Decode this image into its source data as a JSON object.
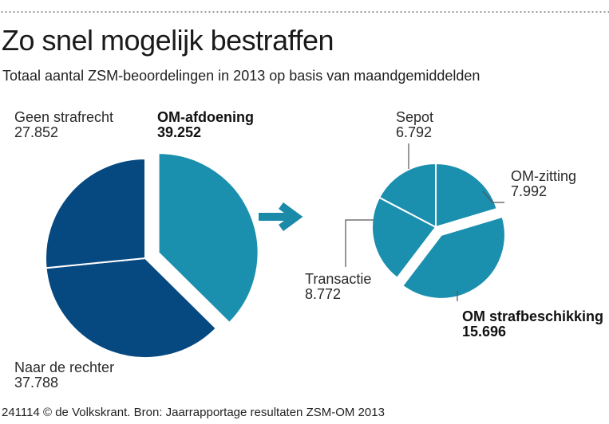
{
  "header": {
    "title": "Zo snel mogelijk bestraffen",
    "subtitle": "Totaal aantal ZSM-beoordelingen in 2013 op basis van maandgemiddelden"
  },
  "footer": {
    "credit": "241114 © de Volkskrant. Bron: Jaarrapportage resultaten ZSM-OM 2013"
  },
  "colors": {
    "dark_blue": "#064880",
    "teal": "#1b8fae",
    "arrow": "#1a8aa8",
    "leader_line": "#555555"
  },
  "chart_data": [
    {
      "type": "pie",
      "slices": [
        {
          "label": "OM-afdoening",
          "value": 39252,
          "value_label": "39.252",
          "color": "#1b8fae",
          "exploded": true,
          "bold": true
        },
        {
          "label": "Naar de rechter",
          "value": 37788,
          "value_label": "37.788",
          "color": "#064880",
          "exploded": false,
          "bold": false
        },
        {
          "label": "Geen strafrecht",
          "value": 27852,
          "value_label": "27.852",
          "color": "#064880",
          "exploded": false,
          "bold": false
        }
      ]
    },
    {
      "type": "pie",
      "slices": [
        {
          "label": "OM-zitting",
          "value": 7992,
          "value_label": "7.992",
          "color": "#1b8fae",
          "exploded": false,
          "bold": false
        },
        {
          "label": "OM strafbeschikking",
          "value": 15696,
          "value_label": "15.696",
          "color": "#1b8fae",
          "exploded": true,
          "bold": true
        },
        {
          "label": "Transactie",
          "value": 8772,
          "value_label": "8.772",
          "color": "#1b8fae",
          "exploded": false,
          "bold": false
        },
        {
          "label": "Sepot",
          "value": 6792,
          "value_label": "6.792",
          "color": "#1b8fae",
          "exploded": false,
          "bold": false
        }
      ]
    }
  ]
}
